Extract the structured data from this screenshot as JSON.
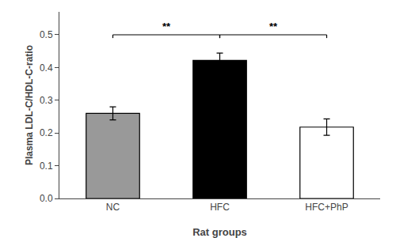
{
  "chart_data": {
    "type": "bar",
    "categories": [
      "NC",
      "HFC",
      "HFC+PhP"
    ],
    "values": [
      0.26,
      0.422,
      0.218
    ],
    "errors": [
      0.02,
      0.022,
      0.025
    ],
    "colors": [
      "#999999",
      "#000000",
      "#ffffff"
    ],
    "xlabel": "Rat groups",
    "ylabel": "Plasma LDL-C/HDL-C‑ratio",
    "ylim": [
      0.0,
      0.57
    ],
    "yticks": [
      {
        "value": 0.0,
        "label": "0.0"
      },
      0.1,
      0.2,
      0.3,
      0.4,
      0.5
    ],
    "grid": false,
    "annotations": [
      {
        "text": "**",
        "between": [
          "NC",
          "HFC"
        ],
        "y": 0.5,
        "tick_height": 0.01
      },
      {
        "text": "**",
        "between": [
          "HFC",
          "HFC+PhP"
        ],
        "y": 0.5,
        "tick_height": 0.01
      }
    ]
  }
}
